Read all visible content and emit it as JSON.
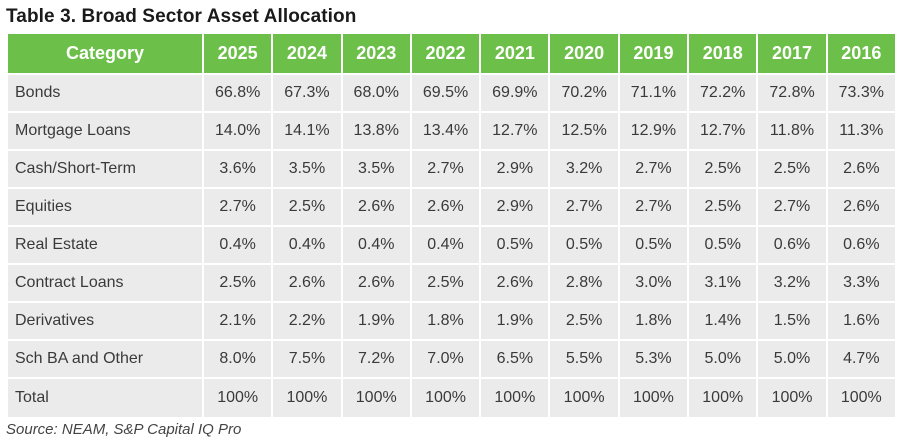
{
  "title": "Table 3. Broad Sector Asset Allocation",
  "source": "Source: NEAM, S&P Capital IQ Pro",
  "table": {
    "header": [
      "Category",
      "2025",
      "2024",
      "2023",
      "2022",
      "2021",
      "2020",
      "2019",
      "2018",
      "2017",
      "2016"
    ],
    "rows": [
      [
        "Bonds",
        "66.8%",
        "67.3%",
        "68.0%",
        "69.5%",
        "69.9%",
        "70.2%",
        "71.1%",
        "72.2%",
        "72.8%",
        "73.3%"
      ],
      [
        "Mortgage Loans",
        "14.0%",
        "14.1%",
        "13.8%",
        "13.4%",
        "12.7%",
        "12.5%",
        "12.9%",
        "12.7%",
        "11.8%",
        "11.3%"
      ],
      [
        "Cash/Short-Term",
        "3.6%",
        "3.5%",
        "3.5%",
        "2.7%",
        "2.9%",
        "3.2%",
        "2.7%",
        "2.5%",
        "2.5%",
        "2.6%"
      ],
      [
        "Equities",
        "2.7%",
        "2.5%",
        "2.6%",
        "2.6%",
        "2.9%",
        "2.7%",
        "2.7%",
        "2.5%",
        "2.7%",
        "2.6%"
      ],
      [
        "Real Estate",
        "0.4%",
        "0.4%",
        "0.4%",
        "0.4%",
        "0.5%",
        "0.5%",
        "0.5%",
        "0.5%",
        "0.6%",
        "0.6%"
      ],
      [
        "Contract Loans",
        "2.5%",
        "2.6%",
        "2.6%",
        "2.5%",
        "2.6%",
        "2.8%",
        "3.0%",
        "3.1%",
        "3.2%",
        "3.3%"
      ],
      [
        "Derivatives",
        "2.1%",
        "2.2%",
        "1.9%",
        "1.8%",
        "1.9%",
        "2.5%",
        "1.8%",
        "1.4%",
        "1.5%",
        "1.6%"
      ],
      [
        "Sch BA and Other",
        "8.0%",
        "7.5%",
        "7.2%",
        "7.0%",
        "6.5%",
        "5.5%",
        "5.3%",
        "5.0%",
        "5.0%",
        "4.7%"
      ]
    ],
    "total": [
      "Total",
      "100%",
      "100%",
      "100%",
      "100%",
      "100%",
      "100%",
      "100%",
      "100%",
      "100%",
      "100%"
    ]
  },
  "colors": {
    "header_bg": "#6cc04a",
    "cell_bg": "#ebebeb"
  }
}
